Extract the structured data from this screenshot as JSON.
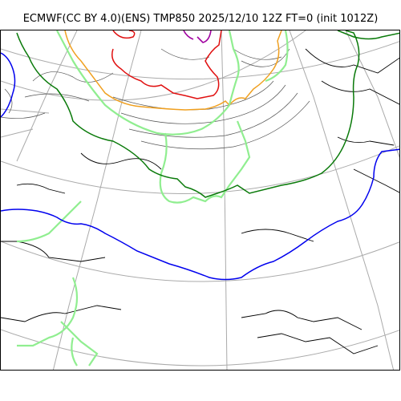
{
  "title": "ECMWF(CC BY 4.0)(ENS) TMP850 2025/12/10 12Z FT=0 (init 1012Z)",
  "map": {
    "projection": "polar stereographic",
    "variable": "TMP850",
    "model": "ECMWF ENS",
    "contour_colors": {
      "isotherm_minus_30": "#a000a0",
      "isotherm_minus_24": "#e01010",
      "isotherm_minus_18": "#f0a020",
      "isotherm_minus_6": "#90ee90",
      "isotherm_0": "#0a7a0a",
      "isotherm_6": "#0000ee",
      "coastline": "#000000",
      "graticule": "#aaaaaa",
      "minor_isotherms": "#555555"
    },
    "gridlines": true
  }
}
